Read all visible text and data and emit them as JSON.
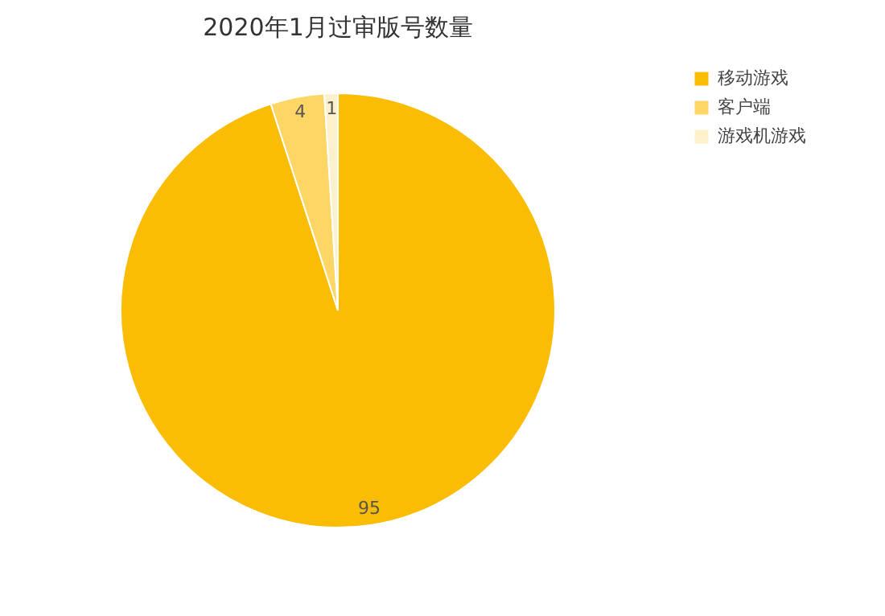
{
  "chart_data": {
    "type": "pie",
    "title": "2020年1月过审版号数量",
    "categories": [
      "移动游戏",
      "客户端",
      "游戏机游戏"
    ],
    "values": [
      95,
      4,
      1
    ],
    "colors": [
      "#fbbc04",
      "#fdd666",
      "#fdf1cc"
    ],
    "data_labels": true,
    "legend": "right"
  }
}
